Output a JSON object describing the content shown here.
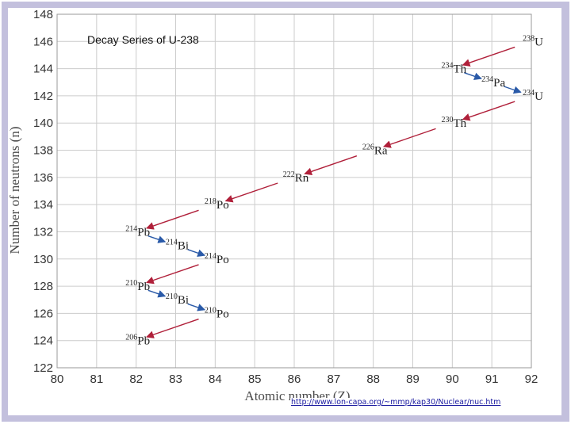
{
  "source_url": "http://www.lon-capa.org/~mmp/kap30/Nuclear/nuc.htm",
  "chart_data": {
    "type": "scatter",
    "title": "Decay Series of U-238",
    "xlabel": "Atomic number (Z)",
    "ylabel": "Number of neutrons (n)",
    "xlim": [
      80,
      92
    ],
    "ylim": [
      122,
      148
    ],
    "x_ticks": [
      80,
      81,
      82,
      83,
      84,
      85,
      86,
      87,
      88,
      89,
      90,
      91,
      92
    ],
    "y_ticks": [
      122,
      124,
      126,
      128,
      130,
      132,
      134,
      136,
      138,
      140,
      142,
      144,
      146,
      148
    ],
    "grid": true,
    "colors": {
      "alpha_arrow": "#b0203a",
      "beta_arrow": "#2a5aa8",
      "grid": "#cccccc",
      "frame": "#c3c0dd"
    },
    "nuclides": [
      {
        "mass": "238",
        "symbol": "U",
        "z": 92,
        "n": 146
      },
      {
        "mass": "234",
        "symbol": "Th",
        "z": 90,
        "n": 144
      },
      {
        "mass": "234",
        "symbol": "Pa",
        "z": 91,
        "n": 143
      },
      {
        "mass": "234",
        "symbol": "U",
        "z": 92,
        "n": 142
      },
      {
        "mass": "230",
        "symbol": "Th",
        "z": 90,
        "n": 140
      },
      {
        "mass": "226",
        "symbol": "Ra",
        "z": 88,
        "n": 138
      },
      {
        "mass": "222",
        "symbol": "Rn",
        "z": 86,
        "n": 136
      },
      {
        "mass": "218",
        "symbol": "Po",
        "z": 84,
        "n": 134
      },
      {
        "mass": "214",
        "symbol": "Pb",
        "z": 82,
        "n": 132
      },
      {
        "mass": "214",
        "symbol": "Bi",
        "z": 83,
        "n": 131
      },
      {
        "mass": "214",
        "symbol": "Po",
        "z": 84,
        "n": 130
      },
      {
        "mass": "210",
        "symbol": "Pb",
        "z": 82,
        "n": 128
      },
      {
        "mass": "210",
        "symbol": "Bi",
        "z": 83,
        "n": 127
      },
      {
        "mass": "210",
        "symbol": "Po",
        "z": 84,
        "n": 126
      },
      {
        "mass": "206",
        "symbol": "Pb",
        "z": 82,
        "n": 124
      }
    ],
    "decays": [
      {
        "from": [
          92,
          146
        ],
        "to": [
          90,
          144
        ],
        "kind": "alpha"
      },
      {
        "from": [
          90,
          144
        ],
        "to": [
          91,
          143
        ],
        "kind": "beta"
      },
      {
        "from": [
          91,
          143
        ],
        "to": [
          92,
          142
        ],
        "kind": "beta"
      },
      {
        "from": [
          92,
          142
        ],
        "to": [
          90,
          140
        ],
        "kind": "alpha"
      },
      {
        "from": [
          90,
          140
        ],
        "to": [
          88,
          138
        ],
        "kind": "alpha"
      },
      {
        "from": [
          88,
          138
        ],
        "to": [
          86,
          136
        ],
        "kind": "alpha"
      },
      {
        "from": [
          86,
          136
        ],
        "to": [
          84,
          134
        ],
        "kind": "alpha"
      },
      {
        "from": [
          84,
          134
        ],
        "to": [
          82,
          132
        ],
        "kind": "alpha"
      },
      {
        "from": [
          82,
          132
        ],
        "to": [
          83,
          131
        ],
        "kind": "beta"
      },
      {
        "from": [
          83,
          131
        ],
        "to": [
          84,
          130
        ],
        "kind": "beta"
      },
      {
        "from": [
          84,
          130
        ],
        "to": [
          82,
          128
        ],
        "kind": "alpha"
      },
      {
        "from": [
          82,
          128
        ],
        "to": [
          83,
          127
        ],
        "kind": "beta"
      },
      {
        "from": [
          83,
          127
        ],
        "to": [
          84,
          126
        ],
        "kind": "beta"
      },
      {
        "from": [
          84,
          126
        ],
        "to": [
          82,
          124
        ],
        "kind": "alpha"
      }
    ]
  }
}
